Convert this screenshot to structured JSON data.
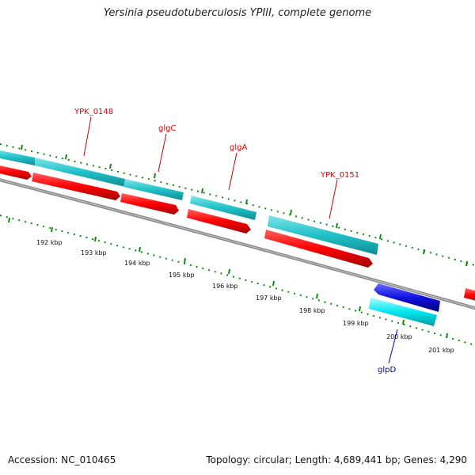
{
  "title": "Yersinia pseudotuberculosis YPIII, complete genome",
  "footer": {
    "accession": "Accession: NC_010465",
    "summary": "Topology: circular; Length: 4,689,441 bp; Genes: 4,290"
  },
  "colors": {
    "forward_cds": "#20c0c8",
    "reverse_cds": "#ff0000",
    "blue_cds": "#1010e0",
    "cyan_cds": "#00e8f0",
    "backbone": "#8a8a8a",
    "tick": "#118811",
    "label_red": "#dd0000",
    "label_blue": "#0000cc"
  },
  "scale_labels": [
    "192 kbp",
    "193 kbp",
    "194 kbp",
    "195 kbp",
    "196 kbp",
    "197 kbp",
    "198 kbp",
    "199 kbp",
    "200 kbp",
    "201 kbp"
  ],
  "gene_labels": [
    {
      "name": "YPK_0148",
      "color": "label_red"
    },
    {
      "name": "glgC",
      "color": "label_red"
    },
    {
      "name": "glgA",
      "color": "label_red"
    },
    {
      "name": "YPK_0151",
      "color": "label_red"
    },
    {
      "name": "glpD",
      "color": "label_blue"
    }
  ]
}
